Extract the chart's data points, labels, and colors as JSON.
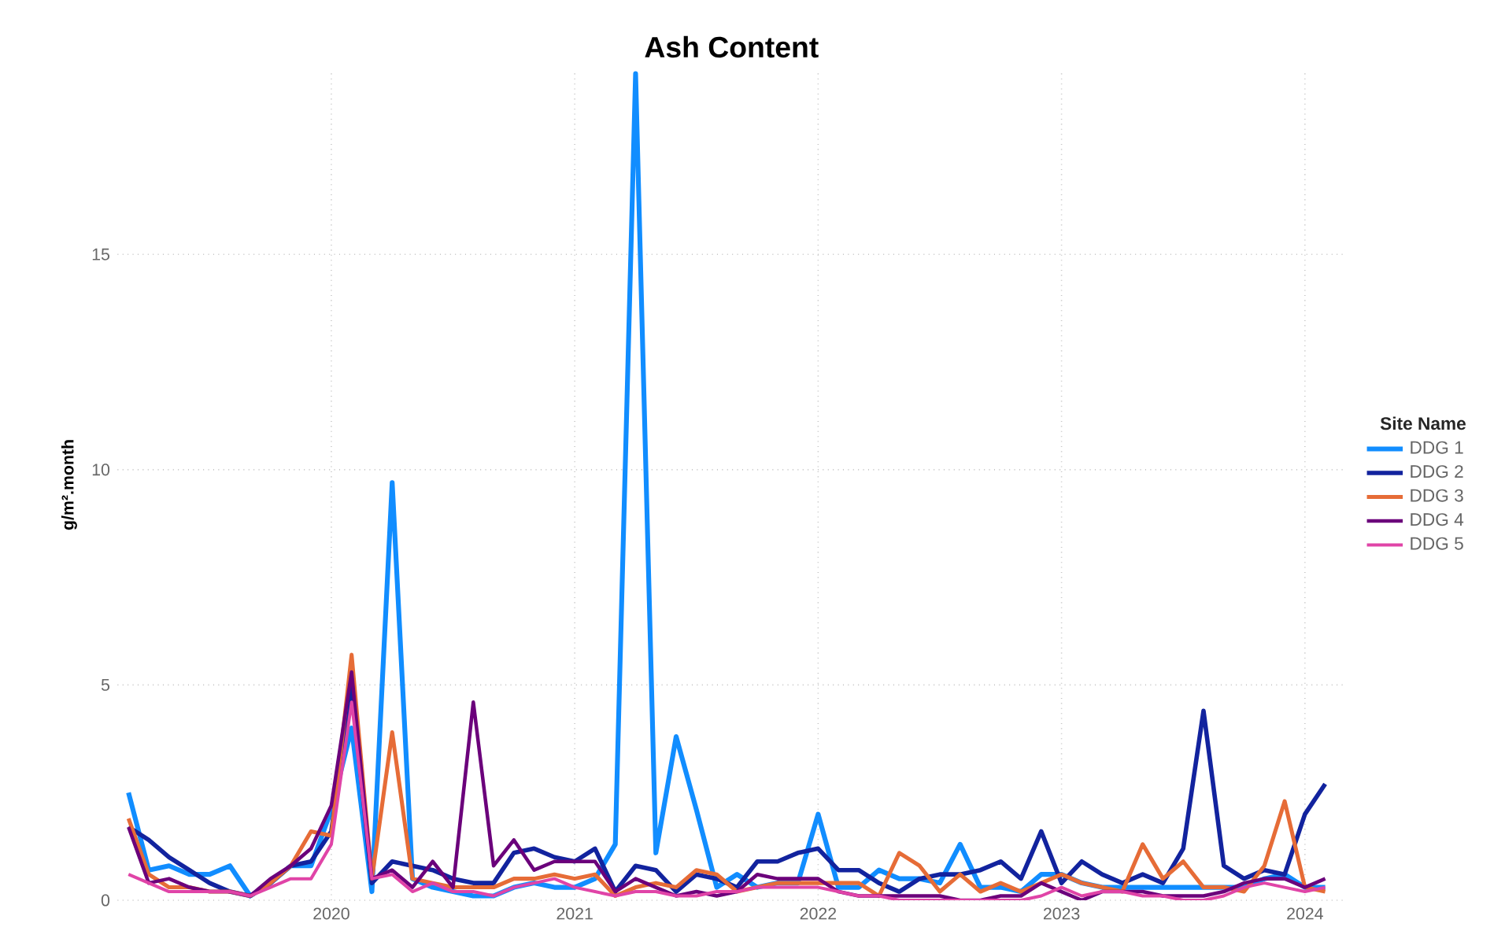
{
  "chart_data": {
    "type": "line",
    "title": "Ash Content",
    "ylabel": "g/m².month",
    "legend_title": "Site Name",
    "x": [
      "2019-03",
      "2019-04",
      "2019-05",
      "2019-06",
      "2019-07",
      "2019-08",
      "2019-09",
      "2019-10",
      "2019-11",
      "2019-12",
      "2020-01",
      "2020-02",
      "2020-03",
      "2020-04",
      "2020-05",
      "2020-06",
      "2020-07",
      "2020-08",
      "2020-09",
      "2020-10",
      "2020-11",
      "2020-12",
      "2021-01",
      "2021-02",
      "2021-03",
      "2021-04",
      "2021-05",
      "2021-06",
      "2021-07",
      "2021-08",
      "2021-09",
      "2021-10",
      "2021-11",
      "2021-12",
      "2022-01",
      "2022-02",
      "2022-03",
      "2022-04",
      "2022-05",
      "2022-06",
      "2022-07",
      "2022-08",
      "2022-09",
      "2022-10",
      "2022-11",
      "2022-12",
      "2023-01",
      "2023-02",
      "2023-03",
      "2023-04",
      "2023-05",
      "2023-06",
      "2023-07",
      "2023-08",
      "2023-09",
      "2023-10",
      "2023-11",
      "2023-12",
      "2024-01",
      "2024-02"
    ],
    "series": [
      {
        "name": "DDG 1",
        "color": "#118dff",
        "values": [
          2.5,
          0.7,
          0.8,
          0.6,
          0.6,
          0.8,
          0.1,
          0.4,
          0.8,
          0.8,
          2.1,
          4.0,
          0.2,
          9.7,
          0.5,
          0.3,
          0.2,
          0.1,
          0.1,
          0.3,
          0.4,
          0.3,
          0.3,
          0.5,
          1.3,
          19.2,
          1.1,
          3.8,
          2.1,
          0.3,
          0.6,
          0.3,
          0.4,
          0.4,
          2.0,
          0.3,
          0.3,
          0.7,
          0.5,
          0.5,
          0.4,
          1.3,
          0.3,
          0.3,
          0.2,
          0.6,
          0.6,
          0.4,
          0.3,
          0.3,
          0.3,
          0.3,
          0.3,
          0.3,
          0.3,
          0.3,
          0.5,
          0.6,
          0.3,
          0.3
        ]
      },
      {
        "name": "DDG 2",
        "color": "#12239e",
        "values": [
          1.7,
          1.4,
          1.0,
          0.7,
          0.4,
          0.2,
          0.1,
          0.4,
          0.8,
          0.9,
          1.6,
          5.0,
          0.4,
          0.9,
          0.8,
          0.7,
          0.5,
          0.4,
          0.4,
          1.1,
          1.2,
          1.0,
          0.9,
          1.2,
          0.2,
          0.8,
          0.7,
          0.2,
          0.6,
          0.5,
          0.3,
          0.9,
          0.9,
          1.1,
          1.2,
          0.7,
          0.7,
          0.4,
          0.2,
          0.5,
          0.6,
          0.6,
          0.7,
          0.9,
          0.5,
          1.6,
          0.4,
          0.9,
          0.6,
          0.4,
          0.6,
          0.4,
          1.2,
          4.4,
          0.8,
          0.5,
          0.7,
          0.6,
          2.0,
          2.7
        ]
      },
      {
        "name": "DDG 3",
        "color": "#e66c37",
        "values": [
          1.9,
          0.6,
          0.3,
          0.3,
          0.2,
          0.2,
          0.1,
          0.4,
          0.8,
          1.6,
          1.5,
          5.7,
          0.5,
          3.9,
          0.5,
          0.4,
          0.3,
          0.3,
          0.3,
          0.5,
          0.5,
          0.6,
          0.5,
          0.6,
          0.1,
          0.3,
          0.4,
          0.3,
          0.7,
          0.6,
          0.2,
          0.3,
          0.4,
          0.4,
          0.4,
          0.4,
          0.4,
          0.1,
          1.1,
          0.8,
          0.2,
          0.6,
          0.2,
          0.4,
          0.2,
          0.4,
          0.6,
          0.4,
          0.3,
          0.2,
          1.3,
          0.5,
          0.9,
          0.3,
          0.3,
          0.2,
          0.8,
          2.3,
          0.3,
          0.2
        ]
      },
      {
        "name": "DDG 4",
        "color": "#6b007b",
        "values": [
          1.7,
          0.4,
          0.5,
          0.3,
          0.2,
          0.2,
          0.1,
          0.5,
          0.8,
          1.2,
          2.2,
          5.3,
          0.5,
          0.7,
          0.3,
          0.9,
          0.3,
          4.6,
          0.8,
          1.4,
          0.7,
          0.9,
          0.9,
          0.9,
          0.2,
          0.5,
          0.3,
          0.1,
          0.2,
          0.1,
          0.2,
          0.6,
          0.5,
          0.5,
          0.5,
          0.2,
          0.1,
          0.1,
          0.1,
          0.1,
          0.1,
          0.0,
          0.0,
          0.1,
          0.1,
          0.4,
          0.2,
          0.0,
          0.2,
          0.2,
          0.2,
          0.1,
          0.1,
          0.1,
          0.2,
          0.4,
          0.5,
          0.5,
          0.3,
          0.5
        ]
      },
      {
        "name": "DDG 5",
        "color": "#e044a7",
        "values": [
          0.6,
          0.4,
          0.2,
          0.2,
          0.2,
          0.2,
          0.1,
          0.3,
          0.5,
          0.5,
          1.3,
          4.6,
          0.5,
          0.6,
          0.2,
          0.4,
          0.2,
          0.2,
          0.1,
          0.3,
          0.4,
          0.5,
          0.3,
          0.2,
          0.1,
          0.2,
          0.2,
          0.1,
          0.1,
          0.2,
          0.2,
          0.3,
          0.3,
          0.3,
          0.3,
          0.2,
          0.1,
          0.1,
          0.0,
          0.0,
          0.0,
          0.0,
          0.0,
          0.0,
          0.0,
          0.1,
          0.3,
          0.1,
          0.2,
          0.2,
          0.1,
          0.1,
          0.0,
          0.0,
          0.1,
          0.3,
          0.4,
          0.3,
          0.2,
          0.3
        ]
      }
    ],
    "xlim": [
      "2019-02-15",
      "2024-03-01"
    ],
    "ylim": [
      0,
      19.3
    ],
    "xticks": [
      "2020",
      "2021",
      "2022",
      "2023",
      "2024"
    ],
    "yticks": [
      0,
      5,
      10,
      15
    ],
    "grid": true,
    "legend": "right",
    "marker": "none",
    "line_style": "solid"
  }
}
